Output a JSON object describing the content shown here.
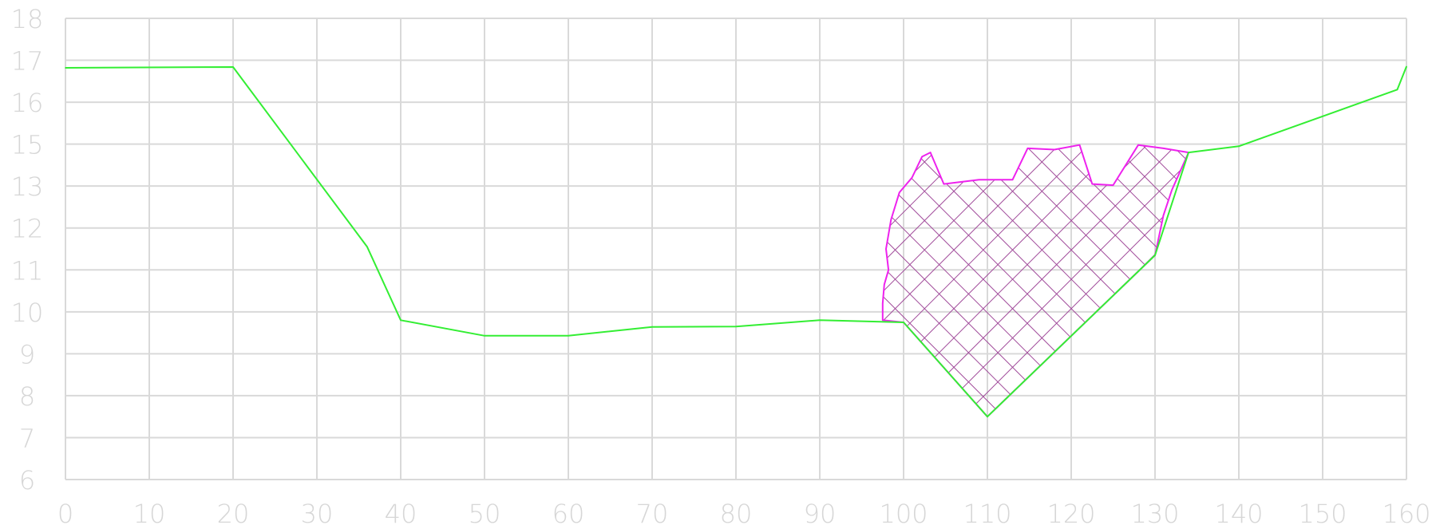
{
  "chart_data": {
    "type": "line",
    "title": "",
    "xlabel": "",
    "ylabel": "",
    "xlim": [
      0,
      160
    ],
    "ylim": [
      6,
      18
    ],
    "grid": true,
    "x_ticks": [
      "0",
      "10",
      "20",
      "30",
      "40",
      "50",
      "60",
      "70",
      "80",
      "90",
      "100",
      "110",
      "120",
      "130",
      "140",
      "150",
      "160"
    ],
    "y_ticks": [
      "6",
      "7",
      "8",
      "9",
      "10",
      "11",
      "12",
      "13",
      "15",
      "16",
      "17",
      "18"
    ],
    "y_tick_positions": [
      0,
      1,
      2,
      3,
      4,
      5,
      6,
      7,
      8,
      9,
      10,
      11
    ],
    "y_tick_position_note": "",
    "series": [
      {
        "name": "",
        "kind": "profile-line",
        "color": "#33ee33",
        "points": [
          [
            0,
            16.82
          ],
          [
            20,
            16.84
          ],
          [
            36,
            11.55
          ],
          [
            40,
            9.8
          ],
          [
            50,
            9.43
          ],
          [
            60,
            9.43
          ],
          [
            70,
            9.64
          ],
          [
            80,
            9.65
          ],
          [
            90,
            9.8
          ],
          [
            100,
            9.75
          ],
          [
            110,
            7.5
          ],
          [
            130,
            11.35
          ],
          [
            134,
            14.8
          ],
          [
            140,
            14.95
          ],
          [
            158.9,
            16.3
          ],
          [
            160,
            16.85
          ]
        ]
      },
      {
        "name": "",
        "kind": "hatched-area",
        "color": "#ee22ee",
        "hatch_color": "#a04a9a",
        "outline": [
          [
            97.5,
            9.8
          ],
          [
            97.5,
            10.2
          ],
          [
            97.7,
            10.65
          ],
          [
            98.2,
            11.0
          ],
          [
            97.9,
            11.5
          ],
          [
            98.5,
            12.2
          ],
          [
            99.5,
            12.85
          ],
          [
            101,
            13.2
          ],
          [
            102.2,
            13.7
          ],
          [
            103.2,
            13.8
          ],
          [
            104.8,
            14.05
          ],
          [
            109,
            14.15
          ],
          [
            113,
            14.15
          ],
          [
            114.8,
            13.9
          ],
          [
            118,
            13.87
          ],
          [
            121,
            13.98
          ],
          [
            122.5,
            14.05
          ],
          [
            125,
            14.02
          ],
          [
            128,
            13.98
          ],
          [
            131,
            13.9
          ],
          [
            134,
            13.8
          ],
          [
            132,
            12.9
          ],
          [
            131,
            12.3
          ],
          [
            130,
            11.35
          ],
          [
            110,
            7.5
          ],
          [
            100,
            9.75
          ]
        ]
      }
    ]
  }
}
